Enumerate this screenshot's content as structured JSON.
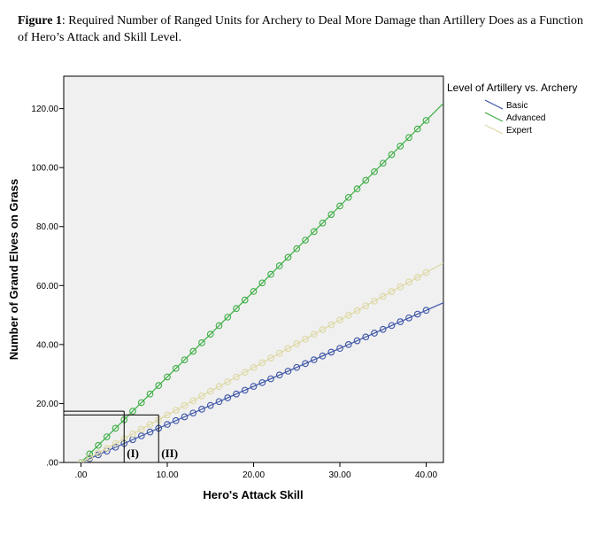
{
  "figure": {
    "label": "Figure 1",
    "caption": ": Required Number of Ranged Units for Archery to Deal More Damage than Artillery Does as a Function of Hero’s Attack and Skill Level."
  },
  "chart_data": {
    "type": "line",
    "title": "",
    "xlabel": "Hero's Attack Skill",
    "ylabel": "Number of Grand Elves on Grass",
    "xlim": [
      -2,
      42
    ],
    "ylim": [
      0,
      131
    ],
    "x_ticks": [
      0,
      10,
      20,
      30,
      40
    ],
    "x_tick_labels": [
      ".00",
      "10.00",
      "20.00",
      "30.00",
      "40.00"
    ],
    "y_ticks": [
      0,
      20,
      40,
      60,
      80,
      100,
      120
    ],
    "y_tick_labels": [
      ".00",
      "20.00",
      "40.00",
      "60.00",
      "80.00",
      "100.00",
      "120.00"
    ],
    "grid": false,
    "legend": {
      "title": "Level of Artillery vs. Archery",
      "placement": "right"
    },
    "x": [
      0,
      1,
      2,
      3,
      4,
      5,
      6,
      7,
      8,
      9,
      10,
      11,
      12,
      13,
      14,
      15,
      16,
      17,
      18,
      19,
      20,
      21,
      22,
      23,
      24,
      25,
      26,
      27,
      28,
      29,
      30,
      31,
      32,
      33,
      34,
      35,
      36,
      37,
      38,
      39,
      40
    ],
    "series": [
      {
        "name": "Basic",
        "color": "#3d55a8",
        "intercept": 0,
        "slope": 1.29,
        "marker_values": [
          0.0,
          1.29,
          2.58,
          3.87,
          5.16,
          6.45,
          7.74,
          9.03,
          10.32,
          11.61,
          12.9,
          14.19,
          15.48,
          16.77,
          18.06,
          19.35,
          20.64,
          21.93,
          23.22,
          24.51,
          25.8,
          27.09,
          28.38,
          29.67,
          30.96,
          32.25,
          33.54,
          34.83,
          36.12,
          37.41,
          38.7,
          39.99,
          41.28,
          42.57,
          43.86,
          45.15,
          46.44,
          47.73,
          49.02,
          50.31,
          51.6
        ]
      },
      {
        "name": "Advanced",
        "color": "#3dae45",
        "intercept": 0,
        "slope": 2.9,
        "marker_values": [
          0.0,
          2.9,
          5.8,
          8.7,
          11.6,
          14.5,
          17.4,
          20.3,
          23.2,
          26.1,
          29.0,
          31.9,
          34.8,
          37.7,
          40.6,
          43.5,
          46.4,
          49.3,
          52.2,
          55.1,
          58.0,
          60.9,
          63.8,
          66.7,
          69.6,
          72.5,
          75.4,
          78.3,
          81.2,
          84.1,
          87.0,
          89.9,
          92.8,
          95.7,
          98.6,
          101.5,
          104.4,
          107.3,
          110.2,
          113.1,
          116.0
        ]
      },
      {
        "name": "Expert",
        "color": "#ddd8a3",
        "intercept": 0,
        "slope": 1.61,
        "marker_values": [
          0.0,
          1.61,
          3.22,
          4.83,
          6.44,
          8.05,
          9.66,
          11.27,
          12.88,
          14.49,
          16.1,
          17.71,
          19.32,
          20.93,
          22.54,
          24.15,
          25.76,
          27.37,
          28.98,
          30.59,
          32.2,
          33.81,
          35.42,
          37.03,
          38.64,
          40.25,
          41.86,
          43.47,
          45.08,
          46.69,
          48.3,
          49.91,
          51.52,
          53.13,
          54.74,
          56.35,
          57.96,
          59.57,
          61.18,
          62.79,
          64.4
        ]
      }
    ],
    "annotations": [
      {
        "label": "(I)",
        "x": 5,
        "y_low": 16.1,
        "y_high": 17.4
      },
      {
        "label": "(II)",
        "x": 9,
        "y": 16.1
      }
    ]
  }
}
